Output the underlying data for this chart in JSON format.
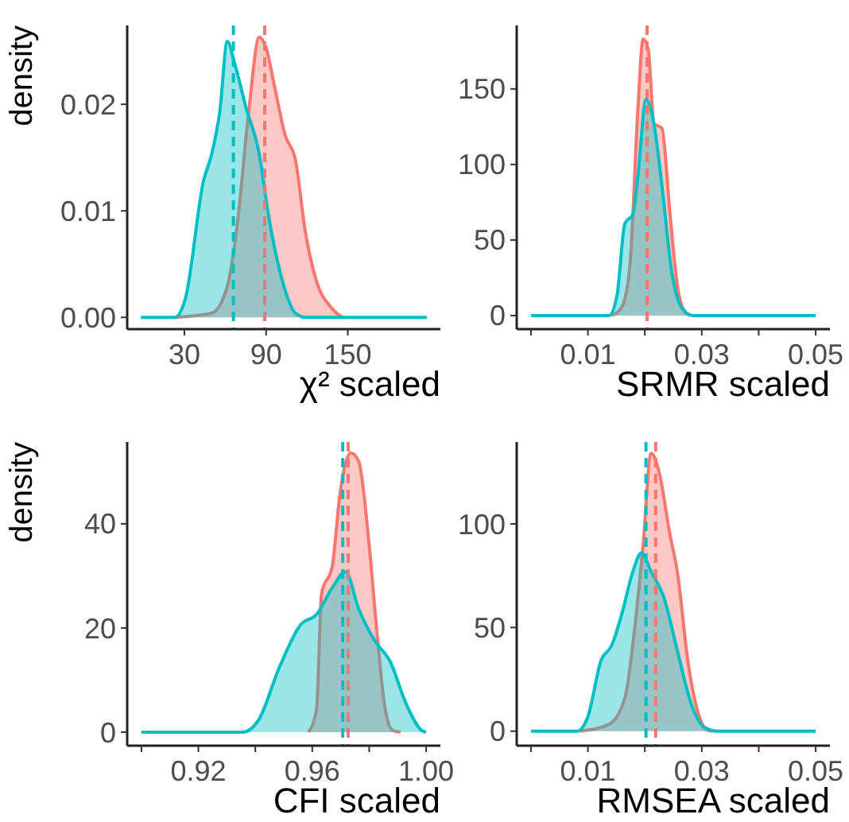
{
  "chart_data": [
    {
      "type": "area",
      "ylabel": "density",
      "xlabel": "χ² scaled",
      "xlim": [
        -12,
        218
      ],
      "ylim": [
        -0.0011,
        0.0274
      ],
      "xticks": [
        30,
        90,
        150
      ],
      "yticks": [
        {
          "value": 0,
          "label": "0.00"
        },
        {
          "value": 0.01,
          "label": "0.01"
        },
        {
          "value": 0.02,
          "label": "0.02"
        }
      ],
      "series": [
        {
          "color": "#f8766d",
          "x": [
            23,
            50,
            61.5,
            69,
            77,
            85,
            90,
            96,
            104,
            111.5,
            119,
            127,
            138,
            146
          ],
          "values": [
            0,
            0.0004,
            0.0029,
            0.0089,
            0.019,
            0.0263,
            0.0253,
            0.0218,
            0.0171,
            0.0148,
            0.0079,
            0.0034,
            0.0009,
            0
          ]
        },
        {
          "color": "#00bfc4",
          "x": [
            -2,
            23,
            31,
            44,
            50,
            56,
            61.5,
            67,
            75,
            85,
            92,
            100,
            111.5,
            119,
            208
          ],
          "values": [
            0,
            0,
            0.0019,
            0.0128,
            0.0153,
            0.0193,
            0.0259,
            0.0238,
            0.0198,
            0.0153,
            0.0094,
            0.0044,
            0.0004,
            0,
            0
          ]
        }
      ],
      "ref_lines": [
        {
          "axis": "x",
          "value": 66,
          "color": "#00bfc4",
          "line_style": "dashed"
        },
        {
          "axis": "x",
          "value": 89,
          "color": "#f8766d",
          "line_style": "dashed"
        }
      ]
    },
    {
      "type": "area",
      "xlabel": "SRMR scaled",
      "xlim": [
        -0.0025,
        0.0525
      ],
      "ylim": [
        -9,
        192
      ],
      "xticks": [
        {
          "value": 0,
          "label": null
        },
        0.01,
        {
          "value": 0.02,
          "label": null
        },
        0.03,
        {
          "value": 0.04,
          "label": null
        },
        0.05
      ],
      "yticks": [
        0,
        50,
        100,
        150
      ],
      "series": [
        {
          "color": "#f8766d",
          "x": [
            0.0142,
            0.016,
            0.0174,
            0.0188,
            0.0197,
            0.0206,
            0.0216,
            0.023,
            0.0244,
            0.0257,
            0.0271,
            0.028
          ],
          "values": [
            0,
            6,
            34,
            138,
            183,
            176,
            127,
            124,
            68,
            20,
            2,
            0
          ]
        },
        {
          "color": "#00bfc4",
          "x": [
            0,
            0.0137,
            0.0151,
            0.0165,
            0.0179,
            0.0188,
            0.0202,
            0.0216,
            0.023,
            0.0248,
            0.0267,
            0.0285,
            0.05
          ],
          "values": [
            0,
            0,
            13,
            61,
            67,
            93,
            143,
            127,
            86,
            27,
            4,
            0,
            0
          ]
        }
      ],
      "ref_lines": [
        {
          "axis": "x",
          "value": 0.0204,
          "color": "#f8766d",
          "line_style": "dashed"
        }
      ]
    },
    {
      "type": "area",
      "ylabel": "density",
      "xlabel": "CFI scaled",
      "xlim": [
        0.895,
        1.005
      ],
      "ylim": [
        -2.6,
        55.7
      ],
      "xticks": [
        {
          "value": 0.9,
          "label": null
        },
        0.92,
        {
          "value": 0.94,
          "label": null
        },
        0.96,
        {
          "value": 0.98,
          "label": null
        },
        {
          "value": 1,
          "label": "1.00"
        }
      ],
      "yticks": [
        0,
        20,
        40
      ],
      "series": [
        {
          "color": "#f8766d",
          "x": [
            0.9587,
            0.9615,
            0.9633,
            0.967,
            0.9698,
            0.9735,
            0.9763,
            0.98,
            0.9828,
            0.9856,
            0.9883,
            0.991
          ],
          "values": [
            0,
            4.4,
            26.7,
            31.8,
            46,
            53.6,
            52,
            35.8,
            18.6,
            4.4,
            0.3,
            0
          ]
        },
        {
          "color": "#00bfc4",
          "x": [
            0.9,
            0.9356,
            0.9411,
            0.9485,
            0.9559,
            0.9615,
            0.967,
            0.9717,
            0.9763,
            0.9819,
            0.9874,
            0.993,
            0.9985,
            1
          ],
          "values": [
            0,
            0,
            2.3,
            12.5,
            20.6,
            22.6,
            27.7,
            30.8,
            23.7,
            17.6,
            13.5,
            5.4,
            0.3,
            0
          ]
        }
      ],
      "ref_lines": [
        {
          "axis": "x",
          "value": 0.9707,
          "color": "#00bfc4",
          "line_style": "dashed"
        },
        {
          "axis": "x",
          "value": 0.9726,
          "color": "#f8766d",
          "line_style": "dashed"
        }
      ]
    },
    {
      "type": "area",
      "xlabel": "RMSEA scaled",
      "xlim": [
        -0.0025,
        0.0525
      ],
      "ylim": [
        -7,
        139.5
      ],
      "xticks": [
        {
          "value": 0,
          "label": null
        },
        0.01,
        {
          "value": 0.02,
          "label": null
        },
        0.03,
        {
          "value": 0.04,
          "label": null
        },
        0.05
      ],
      "yticks": [
        0,
        50,
        100
      ],
      "series": [
        {
          "color": "#f8766d",
          "x": [
            0.0086,
            0.0137,
            0.0165,
            0.0183,
            0.0197,
            0.0211,
            0.0225,
            0.0244,
            0.0257,
            0.0276,
            0.0294,
            0.0308,
            0.0318
          ],
          "values": [
            0,
            3.3,
            16,
            51.7,
            90,
            134,
            125,
            95,
            77,
            33,
            8.4,
            0.8,
            0
          ]
        },
        {
          "color": "#00bfc4",
          "x": [
            0,
            0.0081,
            0.01,
            0.0123,
            0.0142,
            0.016,
            0.0179,
            0.0194,
            0.0211,
            0.0234,
            0.0257,
            0.0281,
            0.0304,
            0.0327,
            0.05
          ],
          "values": [
            0,
            0,
            7,
            34,
            41.5,
            57,
            77,
            86,
            77,
            64,
            39,
            13.5,
            2,
            0,
            0
          ]
        }
      ],
      "ref_lines": [
        {
          "axis": "x",
          "value": 0.0202,
          "color": "#00bfc4",
          "line_style": "dashed"
        },
        {
          "axis": "x",
          "value": 0.0219,
          "color": "#f8766d",
          "line_style": "dashed"
        }
      ]
    }
  ]
}
